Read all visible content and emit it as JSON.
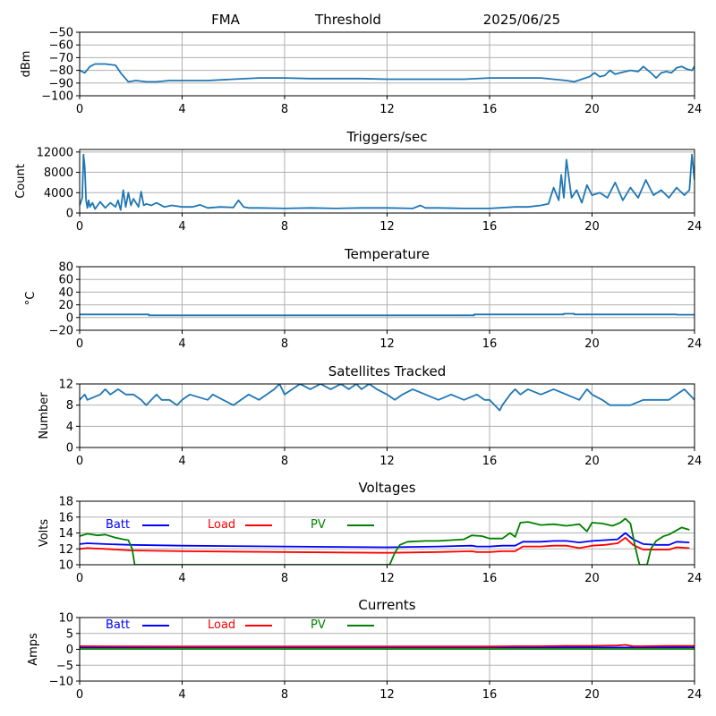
{
  "header": {
    "station": "FMA",
    "mode": "Threshold",
    "date": "2025/06/25"
  },
  "colors": {
    "series": "#1f77b4",
    "batt": "#0000ff",
    "load": "#ff0000",
    "pv": "#008000",
    "grid": "#b0b0b0",
    "axis": "#000000"
  },
  "chart_data": [
    {
      "type": "line",
      "title": "",
      "ylabel": "dBm",
      "xlim": [
        0,
        24
      ],
      "ylim": [
        -100,
        -50
      ],
      "xticks": [
        0,
        4,
        8,
        12,
        16,
        20,
        24
      ],
      "yticks": [
        -100,
        -90,
        -80,
        -70,
        -60,
        -50
      ],
      "ytick_labels": [
        "−100",
        "−90",
        "−80",
        "−70",
        "−60",
        "−50"
      ],
      "grid": true,
      "series": [
        {
          "color": "series",
          "x": [
            0,
            0.2,
            0.4,
            0.6,
            1.0,
            1.4,
            1.6,
            1.9,
            2.2,
            2.6,
            3.0,
            3.5,
            4.0,
            5.0,
            6.0,
            7.0,
            8.0,
            9.0,
            10.0,
            11.0,
            12.0,
            13.0,
            14.0,
            15.0,
            16.0,
            17.0,
            18.0,
            19.0,
            19.3,
            19.6,
            19.9,
            20.1,
            20.3,
            20.5,
            20.7,
            20.9,
            21.1,
            21.3,
            21.5,
            21.8,
            22.0,
            22.3,
            22.5,
            22.7,
            22.9,
            23.1,
            23.3,
            23.5,
            23.7,
            23.9,
            24.0
          ],
          "y": [
            -80,
            -82,
            -77,
            -75,
            -75,
            -76,
            -82,
            -89,
            -88,
            -89,
            -89,
            -88,
            -88,
            -88,
            -87,
            -86,
            -86,
            -86.5,
            -86.5,
            -86.5,
            -87,
            -87,
            -87,
            -87,
            -86,
            -86,
            -86,
            -88,
            -89,
            -87,
            -85,
            -82,
            -85,
            -84,
            -80,
            -83,
            -82,
            -81,
            -80,
            -81,
            -77,
            -82,
            -86,
            -82,
            -81,
            -82,
            -78,
            -77,
            -79,
            -80,
            -77
          ]
        }
      ]
    },
    {
      "type": "line",
      "title": "Triggers/sec",
      "ylabel": "Count",
      "xlim": [
        0,
        24
      ],
      "ylim": [
        0,
        12500
      ],
      "xticks": [
        0,
        4,
        8,
        12,
        16,
        20,
        24
      ],
      "yticks": [
        0,
        4000,
        8000,
        12000
      ],
      "grid": true,
      "series": [
        {
          "color": "series",
          "x": [
            0,
            0.1,
            0.15,
            0.2,
            0.25,
            0.3,
            0.35,
            0.4,
            0.5,
            0.6,
            0.8,
            1.0,
            1.2,
            1.4,
            1.5,
            1.6,
            1.7,
            1.8,
            1.9,
            2.0,
            2.1,
            2.3,
            2.4,
            2.5,
            2.6,
            2.8,
            3.0,
            3.3,
            3.6,
            4.0,
            4.4,
            4.7,
            5.0,
            5.5,
            6.0,
            6.2,
            6.4,
            6.6,
            7.0,
            8.0,
            9.0,
            10.0,
            11.0,
            12.0,
            13.0,
            13.3,
            13.5,
            14.0,
            15.0,
            16.0,
            17.0,
            17.5,
            18.0,
            18.3,
            18.5,
            18.7,
            18.8,
            18.9,
            19.0,
            19.2,
            19.4,
            19.6,
            19.8,
            20.0,
            20.3,
            20.6,
            20.9,
            21.2,
            21.5,
            21.8,
            22.1,
            22.4,
            22.7,
            23.0,
            23.3,
            23.6,
            23.8,
            23.9,
            24.0
          ],
          "y": [
            1500,
            3000,
            11500,
            9000,
            2500,
            1000,
            2500,
            1200,
            2000,
            800,
            2200,
            1000,
            2000,
            1200,
            2500,
            600,
            4500,
            1200,
            4000,
            1500,
            2800,
            1200,
            4200,
            1500,
            1800,
            1500,
            2000,
            1200,
            1500,
            1200,
            1200,
            1600,
            1000,
            1200,
            1100,
            2500,
            1200,
            1000,
            1000,
            900,
            1000,
            900,
            1000,
            1000,
            900,
            1500,
            1000,
            1000,
            900,
            900,
            1200,
            1200,
            1500,
            1800,
            5000,
            2500,
            7500,
            3000,
            10500,
            3000,
            4500,
            2000,
            5500,
            3500,
            4000,
            3000,
            6000,
            2500,
            5000,
            3000,
            6500,
            3500,
            4500,
            3000,
            5000,
            3500,
            4500,
            11500,
            6500
          ]
        }
      ]
    },
    {
      "type": "line",
      "title": "Temperature",
      "ylabel": "°C",
      "xlim": [
        0,
        24
      ],
      "ylim": [
        -20,
        80
      ],
      "xticks": [
        0,
        4,
        8,
        12,
        16,
        20,
        24
      ],
      "yticks": [
        -20,
        0,
        20,
        40,
        60,
        80
      ],
      "ytick_labels": [
        "−20",
        "0",
        "20",
        "40",
        "60",
        "80"
      ],
      "grid": true,
      "series": [
        {
          "color": "series",
          "x": [
            0,
            2.7,
            2.7,
            15.4,
            15.4,
            18.9,
            18.9,
            19.3,
            19.3,
            23.3,
            23.3,
            24
          ],
          "y": [
            5,
            5,
            3.5,
            3.5,
            5,
            5,
            6,
            6,
            5,
            5,
            4.5,
            4.5
          ]
        }
      ]
    },
    {
      "type": "line",
      "title": "Satellites Tracked",
      "ylabel": "Number",
      "xlim": [
        0,
        24
      ],
      "ylim": [
        0,
        12
      ],
      "xticks": [
        0,
        4,
        8,
        12,
        16,
        20,
        24
      ],
      "yticks": [
        0,
        4,
        8,
        12
      ],
      "grid": true,
      "series": [
        {
          "color": "series",
          "x": [
            0,
            0.2,
            0.3,
            0.8,
            1.0,
            1.2,
            1.5,
            1.8,
            2.1,
            2.4,
            2.6,
            2.8,
            3.0,
            3.2,
            3.5,
            3.8,
            4.0,
            4.3,
            5.0,
            5.2,
            5.6,
            6.0,
            6.3,
            6.6,
            7.0,
            7.3,
            7.6,
            7.8,
            8.0,
            8.3,
            8.6,
            9.0,
            9.4,
            9.8,
            10.2,
            10.5,
            10.8,
            11.0,
            11.3,
            11.6,
            12.0,
            12.3,
            12.6,
            13.0,
            13.5,
            14.0,
            14.5,
            15.0,
            15.5,
            15.8,
            16.0,
            16.4,
            16.5,
            16.8,
            17.0,
            17.2,
            17.5,
            18.0,
            18.5,
            19.0,
            19.5,
            19.8,
            20.0,
            20.4,
            20.7,
            21.0,
            21.5,
            22.0,
            22.5,
            23.0,
            23.3,
            23.6,
            23.8,
            24.0
          ],
          "y": [
            9,
            10,
            9,
            10,
            11,
            10,
            11,
            10,
            10,
            9,
            8,
            9,
            10,
            9,
            9,
            8,
            9,
            10,
            9,
            10,
            9,
            8,
            9,
            10,
            9,
            10,
            11,
            12,
            10,
            11,
            12,
            11,
            12,
            11,
            12,
            11,
            12,
            11,
            12,
            11,
            10,
            9,
            10,
            11,
            10,
            9,
            10,
            9,
            10,
            9,
            9,
            7,
            8,
            10,
            11,
            10,
            11,
            10,
            11,
            10,
            9,
            11,
            10,
            9,
            8,
            8,
            8,
            9,
            9,
            9,
            10,
            11,
            10,
            9
          ]
        }
      ]
    },
    {
      "type": "line",
      "title": "Voltages",
      "ylabel": "Volts",
      "xlim": [
        0,
        24
      ],
      "ylim": [
        10,
        18
      ],
      "xticks": [
        0,
        4,
        8,
        12,
        16,
        20,
        24
      ],
      "yticks": [
        10,
        12,
        14,
        16,
        18
      ],
      "grid": true,
      "legend": {
        "placement": "top-left",
        "entries": [
          "Batt",
          "Load",
          "PV"
        ]
      },
      "series": [
        {
          "name": "Batt",
          "color": "batt",
          "x": [
            0,
            0.3,
            1.0,
            2.0,
            4.0,
            8.0,
            12.0,
            14.0,
            15.3,
            15.5,
            16.0,
            16.5,
            17.0,
            17.3,
            18.0,
            18.5,
            19.0,
            19.5,
            20.0,
            20.5,
            21.0,
            21.3,
            21.6,
            22.0,
            22.5,
            23.0,
            23.3,
            23.8
          ],
          "y": [
            12.6,
            12.7,
            12.6,
            12.5,
            12.4,
            12.3,
            12.2,
            12.3,
            12.4,
            12.3,
            12.3,
            12.4,
            12.4,
            12.9,
            12.9,
            13.0,
            13.0,
            12.8,
            13.0,
            13.1,
            13.2,
            14.0,
            13.2,
            12.6,
            12.5,
            12.5,
            12.9,
            12.8
          ]
        },
        {
          "name": "Load",
          "color": "load",
          "x": [
            0,
            0.3,
            1.0,
            2.0,
            4.0,
            8.0,
            12.0,
            14.0,
            15.3,
            15.5,
            16.0,
            16.5,
            17.0,
            17.3,
            18.0,
            18.5,
            19.0,
            19.5,
            20.0,
            20.5,
            21.0,
            21.3,
            21.6,
            22.0,
            22.5,
            23.0,
            23.3,
            23.8
          ],
          "y": [
            12.0,
            12.1,
            12.0,
            11.8,
            11.7,
            11.6,
            11.5,
            11.6,
            11.7,
            11.6,
            11.6,
            11.7,
            11.7,
            12.3,
            12.3,
            12.4,
            12.4,
            12.1,
            12.4,
            12.5,
            12.7,
            13.4,
            12.5,
            11.9,
            11.9,
            11.9,
            12.2,
            12.1
          ]
        },
        {
          "name": "PV",
          "color": "pv",
          "x": [
            0,
            0.3,
            0.7,
            1.0,
            1.4,
            1.7,
            1.9,
            2.05,
            2.15,
            12.1,
            12.3,
            12.5,
            12.8,
            13.5,
            14.0,
            14.5,
            15.0,
            15.3,
            15.7,
            16.0,
            16.5,
            16.8,
            17.0,
            17.2,
            17.5,
            18.0,
            18.5,
            19.0,
            19.5,
            19.8,
            20.0,
            20.4,
            20.8,
            21.1,
            21.3,
            21.5,
            21.7,
            21.85,
            21.95,
            22.15,
            22.3,
            22.5,
            22.8,
            23.0,
            23.5,
            23.8
          ],
          "y": [
            13.6,
            13.9,
            13.7,
            13.8,
            13.4,
            13.2,
            13.1,
            12.0,
            10.0,
            10.0,
            11.5,
            12.5,
            12.9,
            13.0,
            13.0,
            13.1,
            13.2,
            13.7,
            13.6,
            13.3,
            13.3,
            14.0,
            13.5,
            15.3,
            15.4,
            15.0,
            15.1,
            14.9,
            15.1,
            14.2,
            15.3,
            15.2,
            14.9,
            15.3,
            15.8,
            15.2,
            12.0,
            10.0,
            10.0,
            10.0,
            12.0,
            13.0,
            13.6,
            13.8,
            14.7,
            14.4
          ]
        }
      ]
    },
    {
      "type": "line",
      "title": "Currents",
      "ylabel": "Amps",
      "xlim": [
        0,
        24
      ],
      "ylim": [
        -10,
        10
      ],
      "xticks": [
        0,
        4,
        8,
        12,
        16,
        20,
        24
      ],
      "yticks": [
        -10,
        -5,
        0,
        5,
        10
      ],
      "ytick_labels": [
        "−10",
        "−5",
        "0",
        "5",
        "10"
      ],
      "grid": true,
      "legend": {
        "placement": "top-left",
        "entries": [
          "Batt",
          "Load",
          "PV"
        ]
      },
      "series": [
        {
          "name": "Batt",
          "color": "batt",
          "x": [
            0,
            24
          ],
          "y": [
            0.6,
            0.6
          ]
        },
        {
          "name": "Load",
          "color": "load",
          "x": [
            0,
            4,
            8,
            12,
            16,
            17,
            18,
            19,
            20,
            21,
            21.3,
            21.6,
            22,
            23,
            24
          ],
          "y": [
            1.0,
            0.9,
            0.9,
            0.9,
            0.9,
            1.0,
            1.0,
            1.1,
            1.1,
            1.2,
            1.4,
            1.0,
            1.0,
            1.1,
            1.1
          ]
        },
        {
          "name": "PV",
          "color": "pv",
          "x": [
            0,
            24
          ],
          "y": [
            0.1,
            0.1
          ]
        }
      ]
    }
  ]
}
